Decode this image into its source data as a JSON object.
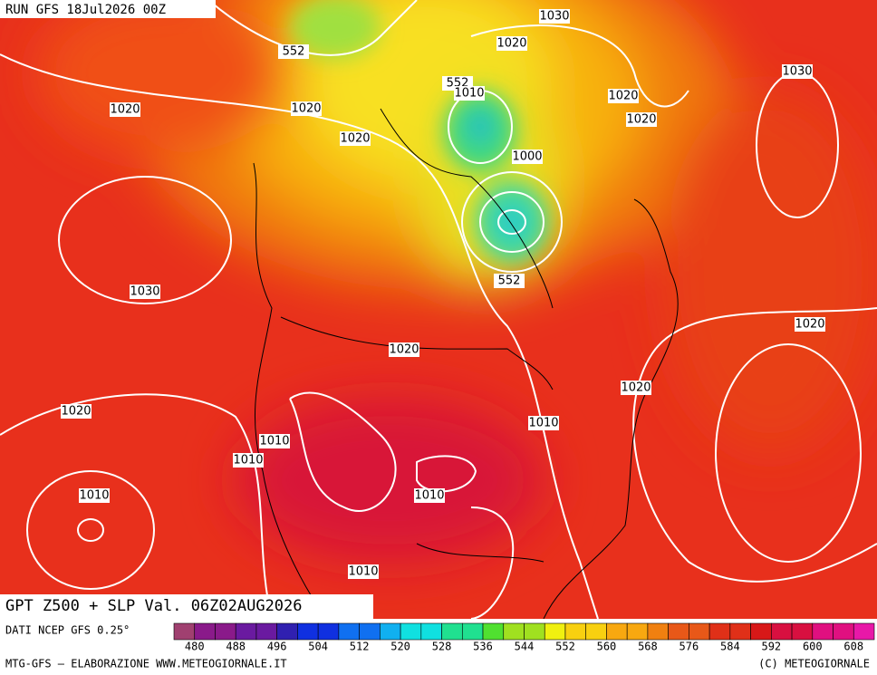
{
  "header": {
    "run": "RUN GFS 18Jul2026 00Z"
  },
  "map_title": "GPT Z500 + SLP Val. 06Z02AUG2026",
  "source": "DATI NCEP GFS 0.25°",
  "colorbar": {
    "labels": [
      480,
      488,
      496,
      504,
      512,
      520,
      528,
      536,
      544,
      552,
      560,
      568,
      576,
      584,
      592,
      600,
      608
    ]
  },
  "contour_labels": [
    552,
    1030,
    1020,
    552,
    1010,
    1030,
    1020,
    1020,
    1020,
    1020,
    1020,
    1000,
    1030,
    552,
    1020,
    1020,
    1020,
    1020,
    1010,
    1010,
    1010,
    1010,
    1010,
    1010
  ],
  "footer": {
    "left": "MTG-GFS — ELABORAZIONE WWW.METEOGIORNALE.IT",
    "right": "(C) METEOGIORNALE"
  }
}
